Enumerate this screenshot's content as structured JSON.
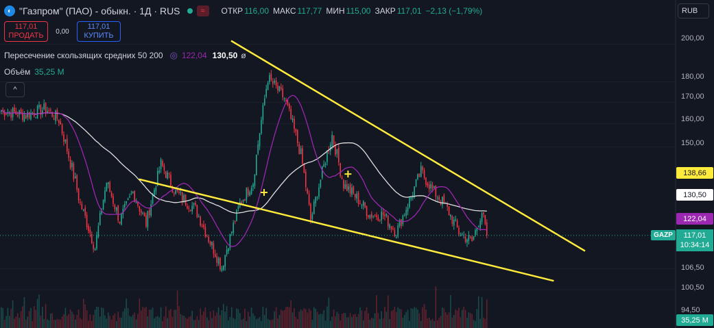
{
  "header": {
    "logo_glyph": "◐",
    "title": "\"Газпром\" (ПАО) - обыкн. · 1Д · RUS",
    "ohlc": [
      {
        "label": "ОТКР",
        "value": "116,00"
      },
      {
        "label": "МАКС",
        "value": "117,77"
      },
      {
        "label": "МИН",
        "value": "115,00"
      },
      {
        "label": "ЗАКР",
        "value": "117,01"
      },
      {
        "label": "",
        "value": "−2,13 (−1,79%)"
      }
    ]
  },
  "trade": {
    "sell_price": "117,01",
    "sell_label": "ПРОДАТЬ",
    "spread": "0,00",
    "buy_price": "117,01",
    "buy_label": "КУПИТЬ"
  },
  "indicators": {
    "ma_cross_label": "Пересечение скользящих средних 50 200",
    "ma_fast_value": "122,04",
    "ma_slow_value": "130,50",
    "ma_suffix": "ø",
    "volume_label": "Объём",
    "volume_value": "35,25 M",
    "collapse_glyph": "^"
  },
  "currency": "RUB",
  "price_axis": {
    "ticks": [
      "200,00",
      "180,00",
      "170,00",
      "160,00",
      "150,00",
      "106,50",
      "100,50",
      "94,50"
    ],
    "labels": [
      {
        "value": "138,66",
        "bg": "#ffeb3b",
        "fg": "#131722"
      },
      {
        "value": "130,50",
        "bg": "#ffffff",
        "fg": "#131722"
      },
      {
        "value": "122,04",
        "bg": "#9c27b0",
        "fg": "#ffffff"
      }
    ],
    "ticker": "GAZP",
    "last_price": "117,01",
    "countdown": "10:34:14",
    "volume_label": "35,25 M"
  },
  "colors": {
    "up": "#22ab94",
    "down": "#f23645",
    "ma50": "#9c27b0",
    "ma200": "#e0e0e0",
    "trend": "#ffeb3b",
    "bg": "#131722",
    "grid": "#1e222d"
  },
  "chart_data": {
    "type": "candlestick",
    "symbol": "GAZP",
    "interval": "1D",
    "ylim": [
      94.5,
      203
    ],
    "last_price": 117.01,
    "ma50_last": 122.04,
    "ma200_last": 130.5,
    "anchors": [
      {
        "i": 0,
        "p": 166
      },
      {
        "i": 15,
        "p": 164
      },
      {
        "i": 27,
        "p": 167
      },
      {
        "i": 35,
        "p": 162
      },
      {
        "i": 48,
        "p": 128
      },
      {
        "i": 57,
        "p": 113
      },
      {
        "i": 64,
        "p": 136
      },
      {
        "i": 72,
        "p": 122
      },
      {
        "i": 80,
        "p": 132
      },
      {
        "i": 88,
        "p": 121
      },
      {
        "i": 97,
        "p": 143
      },
      {
        "i": 106,
        "p": 132
      },
      {
        "i": 118,
        "p": 126
      },
      {
        "i": 126,
        "p": 116
      },
      {
        "i": 134,
        "p": 107
      },
      {
        "i": 145,
        "p": 128
      },
      {
        "i": 153,
        "p": 136
      },
      {
        "i": 162,
        "p": 182
      },
      {
        "i": 172,
        "p": 172
      },
      {
        "i": 182,
        "p": 147
      },
      {
        "i": 188,
        "p": 122
      },
      {
        "i": 194,
        "p": 137
      },
      {
        "i": 201,
        "p": 155
      },
      {
        "i": 208,
        "p": 135
      },
      {
        "i": 216,
        "p": 130
      },
      {
        "i": 224,
        "p": 124
      },
      {
        "i": 232,
        "p": 124
      },
      {
        "i": 240,
        "p": 118
      },
      {
        "i": 248,
        "p": 129
      },
      {
        "i": 255,
        "p": 140
      },
      {
        "i": 262,
        "p": 133
      },
      {
        "i": 270,
        "p": 127
      },
      {
        "i": 278,
        "p": 118
      },
      {
        "i": 286,
        "p": 115
      },
      {
        "i": 292,
        "p": 125
      },
      {
        "i": 295,
        "p": 117
      }
    ],
    "trendlines": [
      {
        "from": {
          "i": 140,
          "p": 202
        },
        "to": {
          "i": 355,
          "p": 112
        }
      },
      {
        "from": {
          "i": 84,
          "p": 137
        },
        "to": {
          "i": 336,
          "p": 103
        }
      }
    ],
    "cross_markers": [
      {
        "i": 160,
        "p": 132
      },
      {
        "i": 211,
        "p": 139
      }
    ]
  }
}
